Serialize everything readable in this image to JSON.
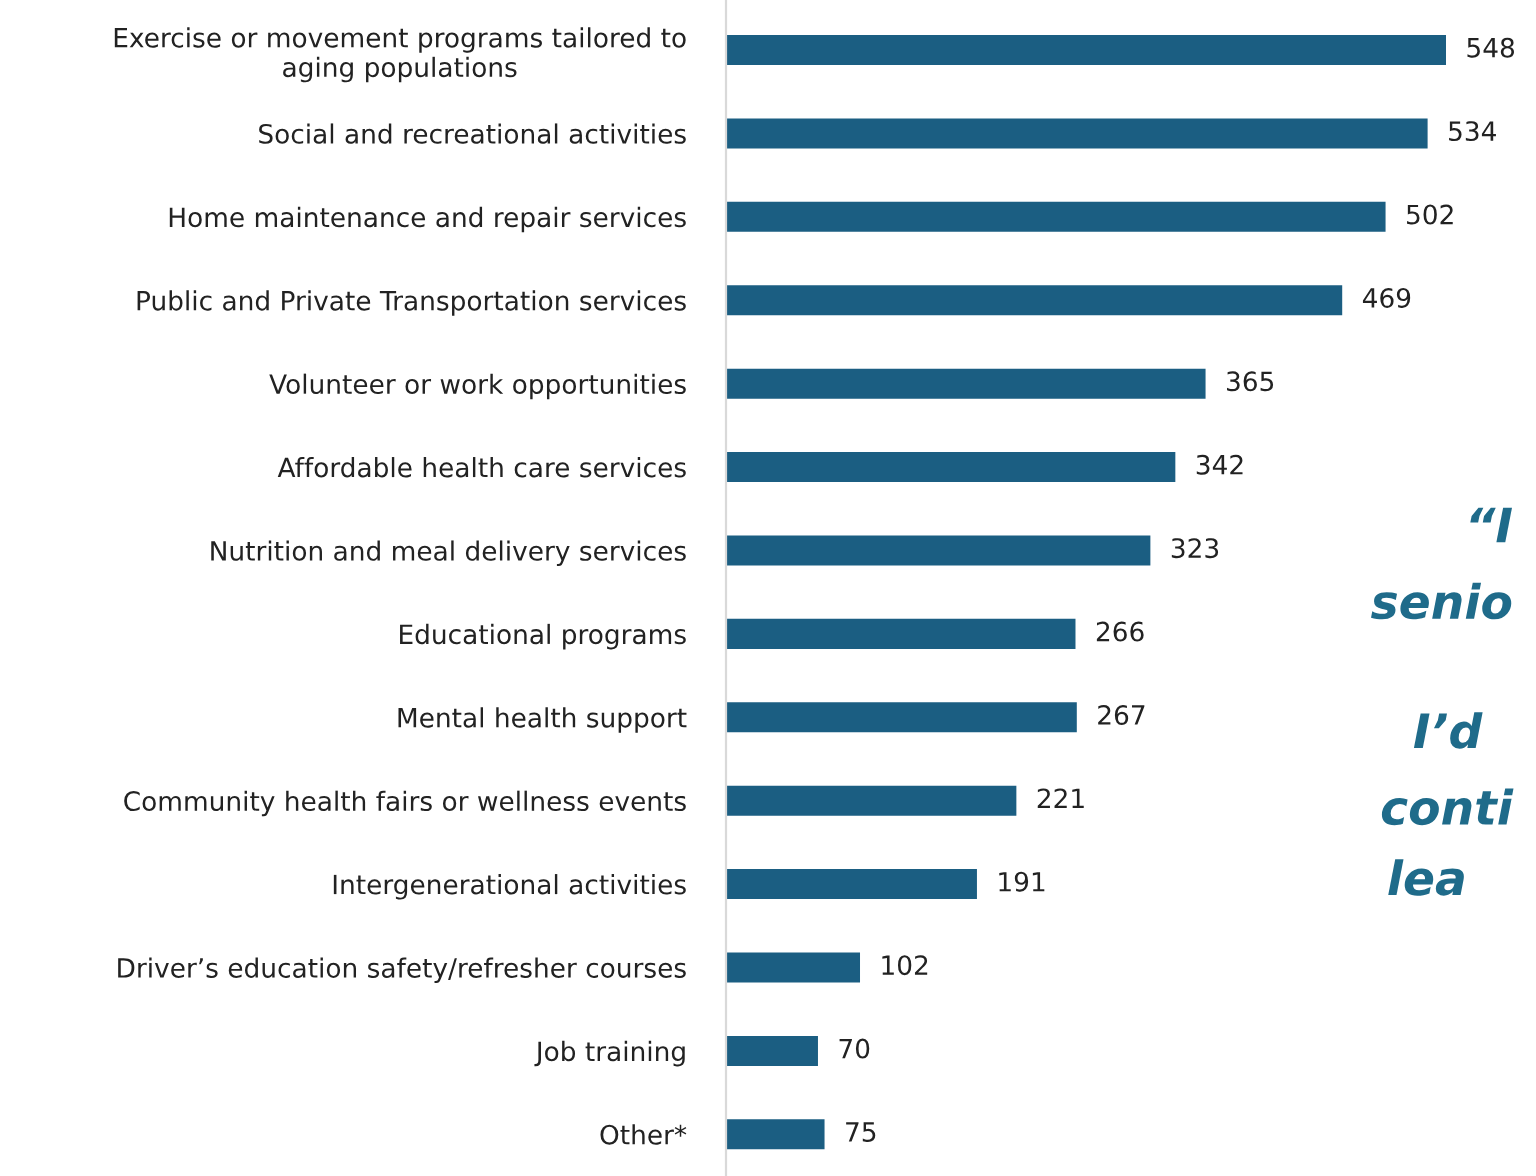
{
  "chart_data": {
    "type": "bar",
    "orientation": "horizontal",
    "data_labels": true,
    "grid": false,
    "categories": [
      "Exercise or movement programs tailored to\naging populations",
      "Social and recreational activities",
      "Home maintenance and repair services",
      "Public and Private Transportation services",
      "Volunteer or work opportunities",
      "Affordable health care services",
      "Nutrition and meal delivery services",
      "Educational programs",
      "Mental health support",
      "Community health fairs or wellness events",
      "Intergenerational activities",
      "Driver’s education safety/refresher courses",
      "Job training",
      "Other*"
    ],
    "values": [
      548,
      534,
      502,
      469,
      365,
      342,
      323,
      266,
      267,
      221,
      191,
      102,
      70,
      75
    ],
    "color": "#1b5e82",
    "annotations": [
      "“I",
      "senio",
      "I’d",
      "conti",
      "lea"
    ]
  }
}
